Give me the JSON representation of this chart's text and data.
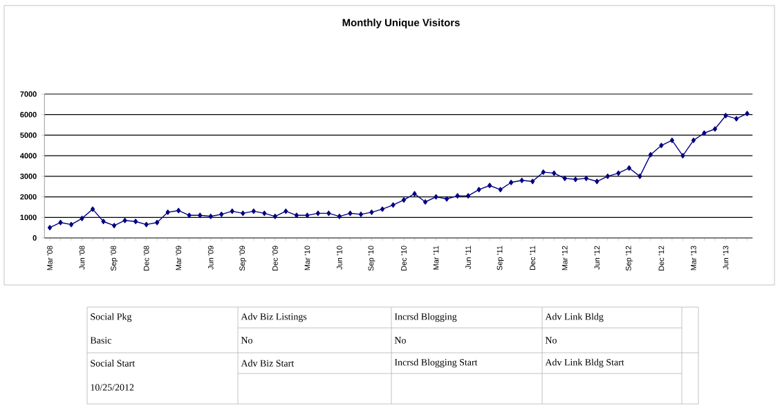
{
  "chart_data": {
    "type": "line",
    "title": "Monthly Unique Visitors",
    "categories": [
      "Mar '08",
      null,
      null,
      "Jun '08",
      null,
      null,
      "Sep '08",
      null,
      null,
      "Dec '08",
      null,
      null,
      "Mar '09",
      null,
      null,
      "Jun '09",
      null,
      null,
      "Sep '09",
      null,
      null,
      "Dec '09",
      null,
      null,
      "Mar '10",
      null,
      null,
      "Jun '10",
      null,
      null,
      "Sep '10",
      null,
      null,
      "Dec '10",
      null,
      null,
      "Mar '11",
      null,
      null,
      "Jun '11",
      null,
      null,
      "Sep '11",
      null,
      null,
      "Dec '11",
      null,
      null,
      "Mar '12",
      null,
      null,
      "Jun '12",
      null,
      null,
      "Sep '12",
      null,
      null,
      "Dec '12",
      null,
      null,
      "Mar '13",
      null,
      null,
      "Jun '13",
      null,
      null
    ],
    "series": [
      {
        "color": "#000080",
        "values": [
          500,
          750,
          650,
          950,
          1400,
          800,
          600,
          850,
          800,
          650,
          750,
          1250,
          1330,
          1100,
          1100,
          1050,
          1150,
          1300,
          1200,
          1300,
          1200,
          1050,
          1300,
          1100,
          1100,
          1200,
          1200,
          1050,
          1200,
          1150,
          1250,
          1400,
          1600,
          1850,
          2150,
          1750,
          2000,
          1900,
          2050,
          2050,
          2350,
          2550,
          2350,
          2700,
          2800,
          2750,
          3200,
          3150,
          2900,
          2850,
          2900,
          2750,
          3000,
          3150,
          3400,
          3000,
          4050,
          4500,
          4750,
          4000,
          4750,
          5100,
          5300,
          5950,
          5800,
          6050
        ]
      }
    ],
    "ylim": [
      0,
      7000
    ],
    "yticks": [
      0,
      1000,
      2000,
      3000,
      4000,
      5000,
      6000,
      7000
    ],
    "grid": "y",
    "marker": "diamond",
    "line_style": "solid",
    "annotations": [
      "Social Pkg",
      "Adv Biz Listings",
      "Incrsd Blogging",
      "Adv Link Bldg",
      "Basic",
      "No",
      "No",
      "No",
      "Social Start",
      "Adv Biz Start",
      "Incrsd Blogging Start",
      "Adv Link Bldg Start",
      "10/25/2012"
    ]
  }
}
